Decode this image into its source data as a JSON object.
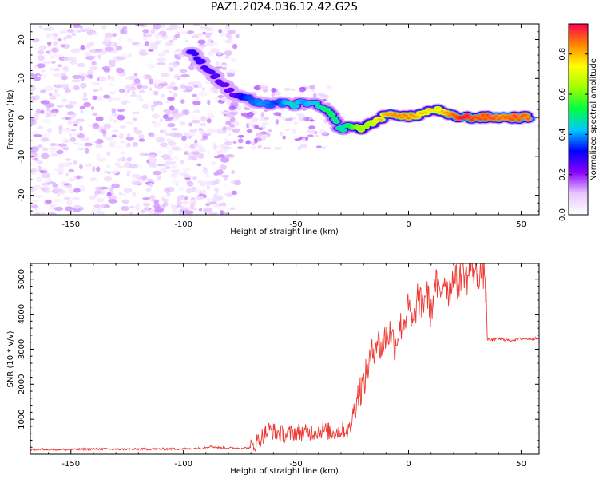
{
  "title": "PAZ1.2024.036.12.42.G25",
  "chart_data": [
    {
      "type": "heatmap",
      "title": "PAZ1.2024.036.12.42.G25",
      "xlabel": "Height of straight line (km)",
      "ylabel": "Frequency (Hz)",
      "xlim": [
        -168,
        58
      ],
      "ylim": [
        -25,
        24
      ],
      "xticks": [
        -150,
        -100,
        -50,
        0,
        50
      ],
      "yticks": [
        -20,
        -10,
        0,
        10,
        20
      ],
      "grid": false,
      "colorbar": {
        "label": "Normalized spectral amplitude",
        "range": [
          0,
          0.95
        ],
        "ticks": [
          0.0,
          0.2,
          0.4,
          0.6,
          0.8
        ],
        "colormap": [
          "#ffffff",
          "#e8c8ff",
          "#8a00ff",
          "#0000ff",
          "#00c8ff",
          "#00ff40",
          "#a0ff00",
          "#ffff00",
          "#ff8800",
          "#ff0050"
        ]
      },
      "ridge": [
        {
          "x": -97,
          "y": 17,
          "a": 0.25
        },
        {
          "x": -78,
          "y": 6,
          "a": 0.2
        },
        {
          "x": -72,
          "y": 5,
          "a": 0.3
        },
        {
          "x": -65,
          "y": 3,
          "a": 0.35
        },
        {
          "x": -58,
          "y": 4,
          "a": 0.3
        },
        {
          "x": -52,
          "y": 3,
          "a": 0.4
        },
        {
          "x": -46,
          "y": 4,
          "a": 0.35
        },
        {
          "x": -40,
          "y": 3,
          "a": 0.4
        },
        {
          "x": -35,
          "y": 1,
          "a": 0.45
        },
        {
          "x": -30,
          "y": -3,
          "a": 0.4
        },
        {
          "x": -26,
          "y": -2,
          "a": 0.45
        },
        {
          "x": -22,
          "y": -3,
          "a": 0.55
        },
        {
          "x": -18,
          "y": -2,
          "a": 0.55
        },
        {
          "x": -12,
          "y": 0,
          "a": 0.65
        },
        {
          "x": -6,
          "y": 1,
          "a": 0.7
        },
        {
          "x": 0,
          "y": 0,
          "a": 0.7
        },
        {
          "x": 6,
          "y": 1,
          "a": 0.65
        },
        {
          "x": 12,
          "y": 2,
          "a": 0.6
        },
        {
          "x": 18,
          "y": 0.5,
          "a": 0.7
        },
        {
          "x": 24,
          "y": 0,
          "a": 0.8
        },
        {
          "x": 30,
          "y": 0,
          "a": 0.75
        },
        {
          "x": 36,
          "y": 0,
          "a": 0.75
        },
        {
          "x": 42,
          "y": 0,
          "a": 0.72
        },
        {
          "x": 48,
          "y": 0,
          "a": 0.75
        },
        {
          "x": 54,
          "y": 0,
          "a": 0.72
        }
      ]
    },
    {
      "type": "line",
      "xlabel": "Height of straight line (km)",
      "ylabel": "SNR (10 * v/v)",
      "xlim": [
        -168,
        58
      ],
      "ylim": [
        0,
        5450
      ],
      "xticks": [
        -150,
        -100,
        -50,
        0,
        50
      ],
      "yticks": [
        1000,
        2000,
        3000,
        4000,
        5000
      ],
      "grid": false,
      "color": "#ee3a33",
      "series": [
        {
          "x": [
            -168,
            -160,
            -150,
            -140,
            -130,
            -120,
            -110,
            -100,
            -92,
            -88,
            -85,
            -80,
            -75,
            -70,
            -66,
            -62,
            -58,
            -54,
            -50,
            -46,
            -42,
            -38,
            -34,
            -30,
            -26,
            -24,
            -22,
            -20,
            -18,
            -16,
            -14,
            -12,
            -10,
            -8,
            -6,
            -4,
            -2,
            0,
            2,
            4,
            6,
            8,
            10,
            12,
            14,
            16,
            18,
            20,
            22,
            24,
            26,
            28,
            30,
            32,
            34,
            35,
            36,
            40,
            45,
            50,
            55,
            58
          ],
          "y": [
            130,
            140,
            130,
            150,
            140,
            145,
            150,
            150,
            170,
            230,
            190,
            180,
            170,
            190,
            450,
            700,
            600,
            550,
            650,
            600,
            650,
            700,
            620,
            680,
            700,
            1400,
            1800,
            2000,
            2500,
            2900,
            3300,
            3000,
            3400,
            3500,
            3100,
            3600,
            3800,
            4200,
            3600,
            4500,
            4200,
            4700,
            4000,
            4900,
            4500,
            5100,
            4600,
            5200,
            4800,
            5300,
            5000,
            5400,
            5100,
            5200,
            5150,
            3300,
            3250,
            3300,
            3250,
            3300,
            3300,
            3300
          ]
        }
      ]
    }
  ]
}
